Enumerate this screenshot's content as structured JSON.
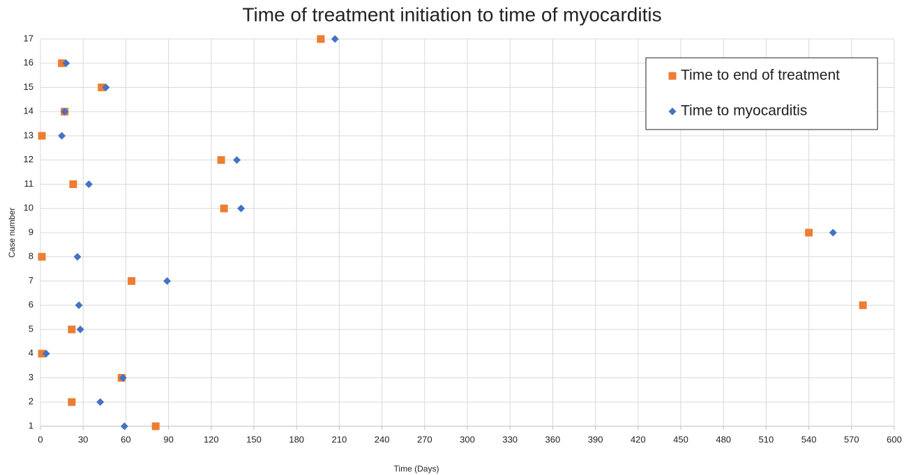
{
  "chart_data": {
    "type": "scatter",
    "title": "Time of treatment initiation to time of myocarditis",
    "x_label": "Time (Days)",
    "y_label": "Case number",
    "xlim": [
      0,
      600
    ],
    "xticks": [
      0,
      30,
      60,
      90,
      120,
      150,
      180,
      210,
      240,
      270,
      300,
      330,
      360,
      390,
      420,
      450,
      480,
      510,
      540,
      570,
      600
    ],
    "ylim": [
      1,
      17
    ],
    "yticks": [
      1,
      2,
      3,
      4,
      5,
      6,
      7,
      8,
      9,
      10,
      11,
      12,
      13,
      14,
      15,
      16,
      17
    ],
    "grid": true,
    "legend": "upper right",
    "series": [
      {
        "name": "Time to end of treatment",
        "color": "#ed7d31",
        "marker": "square",
        "x": [
          81,
          22,
          57,
          1,
          22,
          578,
          64,
          1,
          540,
          129,
          23,
          127,
          1,
          17,
          43,
          15,
          197
        ],
        "values": [
          1,
          2,
          3,
          4,
          5,
          6,
          7,
          8,
          9,
          10,
          11,
          12,
          13,
          14,
          15,
          16,
          17
        ]
      },
      {
        "name": "Time to myocarditis",
        "color": "#4472c4",
        "marker": "diamond",
        "x": [
          59,
          42,
          58,
          4,
          28,
          27,
          89,
          26,
          557,
          141,
          34,
          138,
          15,
          17,
          46,
          18,
          207
        ],
        "values": [
          1,
          2,
          3,
          4,
          5,
          6,
          7,
          8,
          9,
          10,
          11,
          12,
          13,
          14,
          15,
          16,
          17
        ]
      }
    ]
  }
}
